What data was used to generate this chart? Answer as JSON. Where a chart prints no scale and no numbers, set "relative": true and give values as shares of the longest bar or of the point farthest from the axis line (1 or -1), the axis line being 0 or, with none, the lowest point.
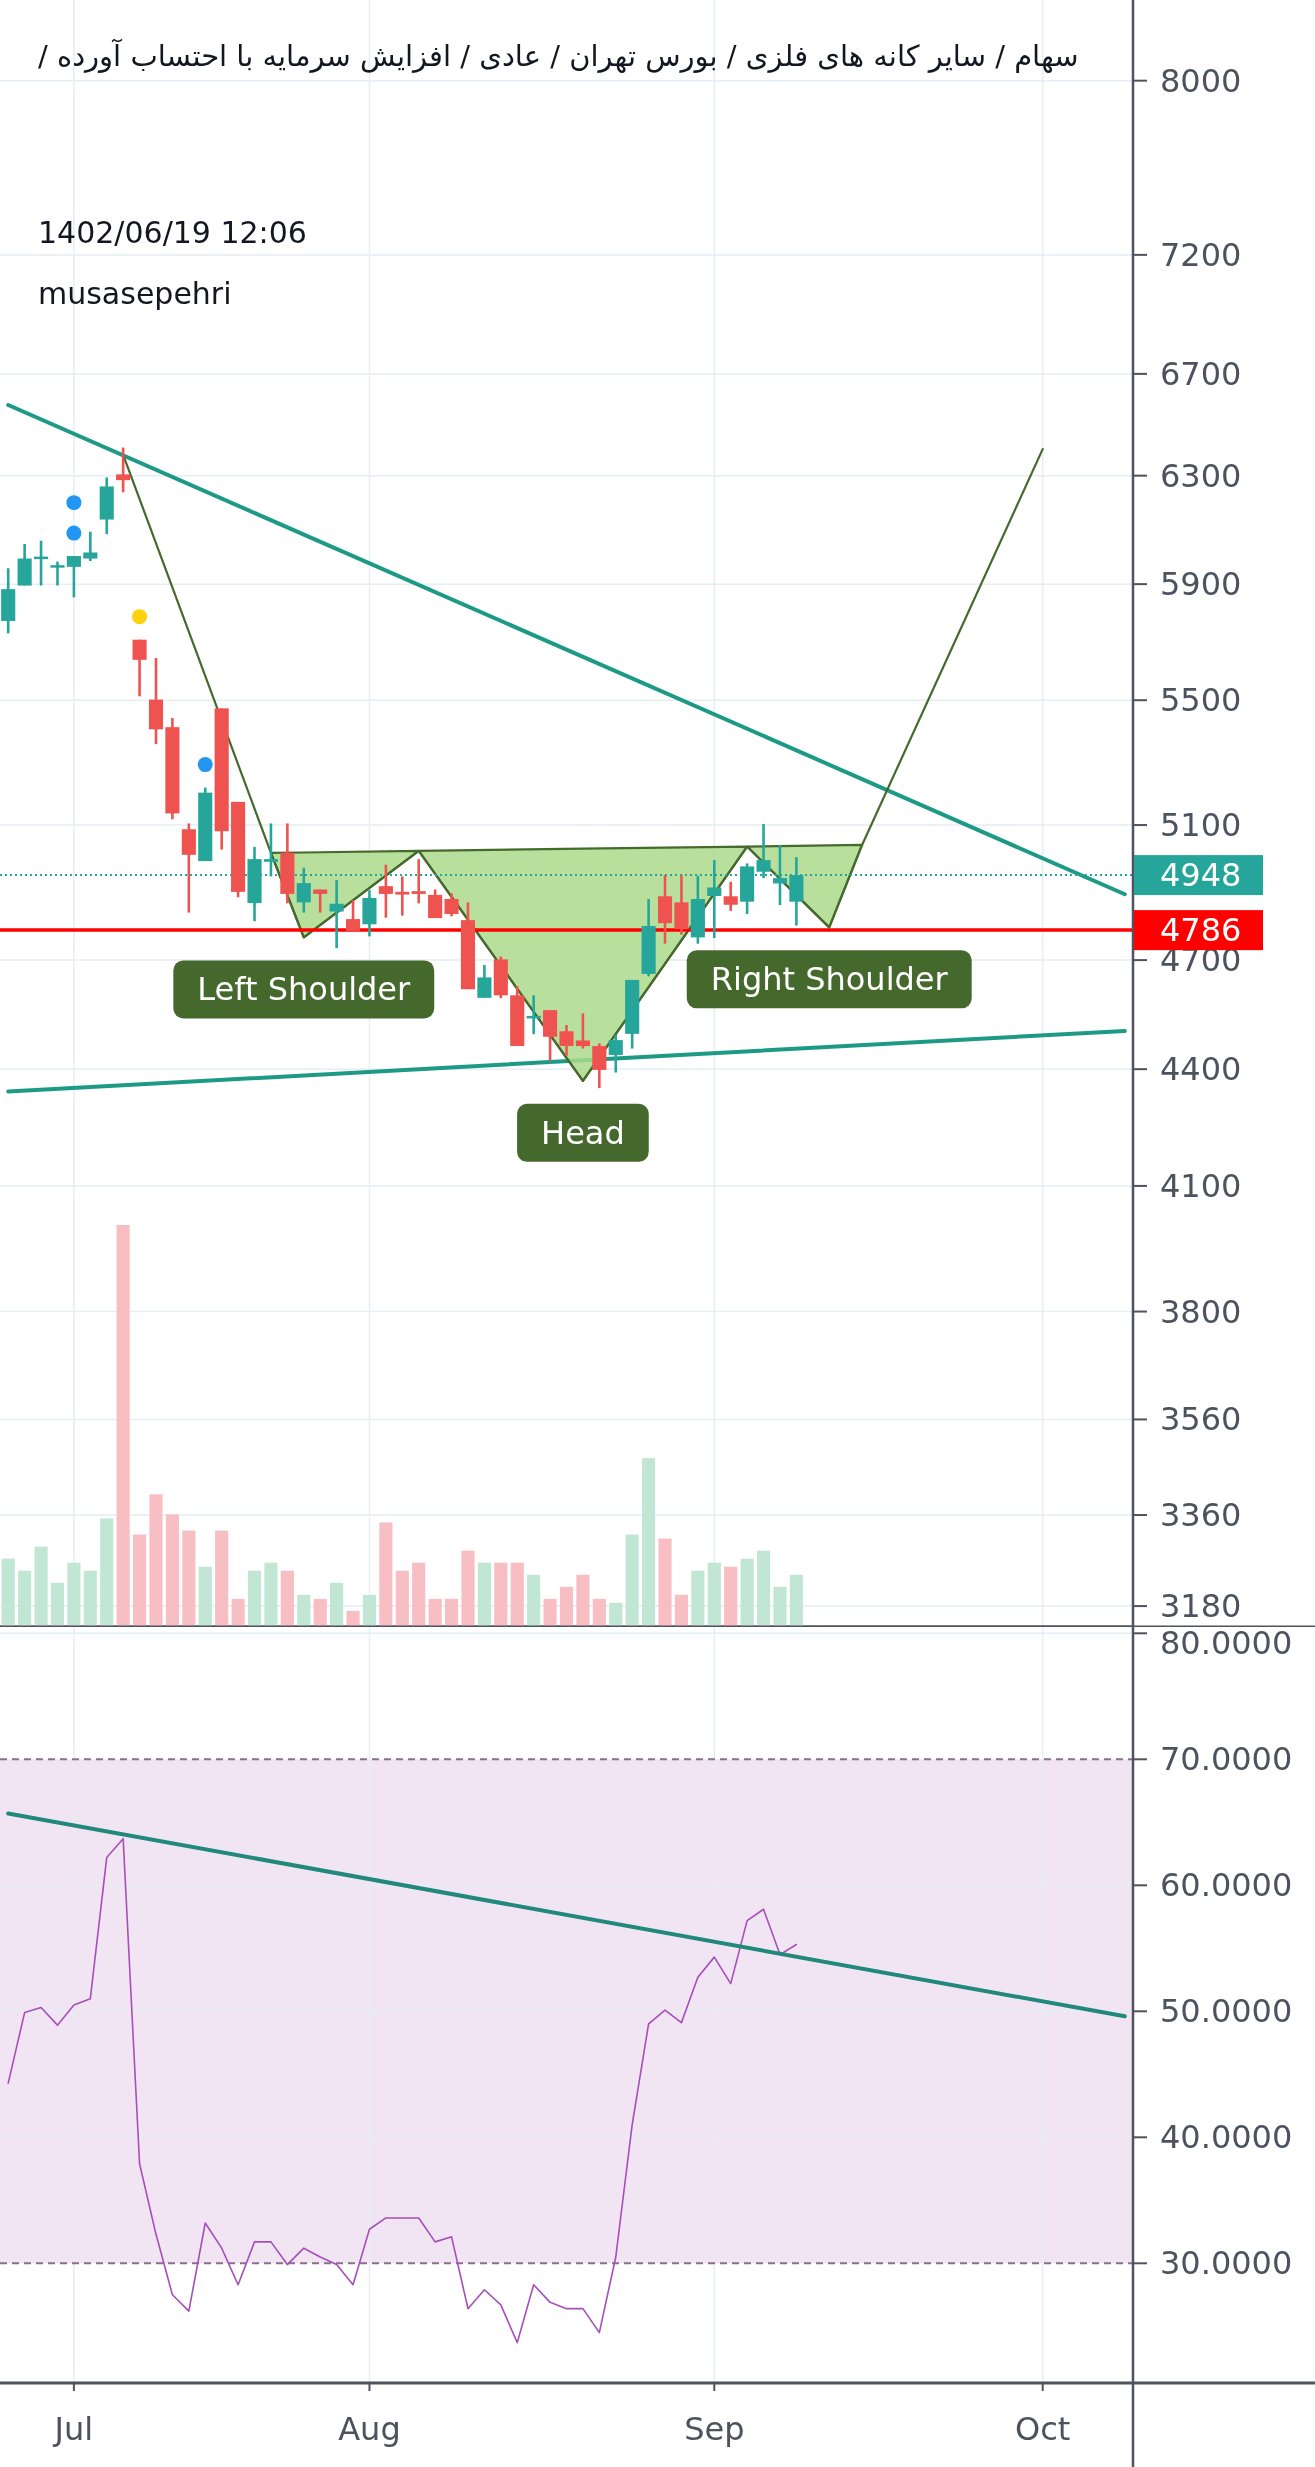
{
  "chart_data": [
    {
      "type": "candlestick",
      "title": "سهام / سایر کانه های فلزی / بورس تهران / عادی / افزایش سرمایه با احتساب آورده /",
      "annotations": [
        "1402/06/19 12:06",
        "musasepehri"
      ],
      "categories": [
        null,
        null,
        null,
        null,
        null,
        null,
        null,
        null,
        null,
        null,
        null,
        null,
        null,
        null,
        null,
        null,
        null,
        null,
        null,
        null,
        null,
        null,
        null,
        null,
        null,
        null,
        null,
        null,
        null,
        null,
        null,
        null,
        null,
        null,
        null,
        null,
        null,
        null,
        null,
        null,
        null,
        null,
        null,
        null,
        null,
        null,
        null,
        null,
        null,
        null,
        null,
        null,
        null,
        null,
        null,
        null,
        null,
        null,
        null,
        null,
        null,
        null,
        null,
        null,
        null,
        null,
        null,
        null,
        null
      ],
      "ohlc": [
        [
          5770,
          5957,
          5727,
          5882
        ],
        [
          5895,
          6045,
          5895,
          5992
        ],
        [
          5995,
          6057,
          5895,
          5999
        ],
        [
          5962,
          5981,
          5895,
          5968
        ],
        [
          5962,
          6001,
          5853,
          6001
        ],
        [
          5992,
          6090,
          5983,
          6014
        ],
        [
          6135,
          6293,
          6081,
          6259
        ],
        [
          6305,
          6408,
          6237,
          6283
        ],
        [
          5705,
          5705,
          5513,
          5636
        ],
        [
          5502,
          5642,
          5356,
          5404
        ],
        [
          5411,
          5441,
          5118,
          5136
        ],
        [
          5087,
          5105,
          4837,
          5009
        ],
        [
          4990,
          5217,
          4990,
          5201
        ],
        [
          5473,
          5473,
          5025,
          5081
        ],
        [
          5172,
          5172,
          4882,
          4898
        ],
        [
          4865,
          5033,
          4812,
          4996
        ],
        [
          4988,
          5105,
          4944,
          4996
        ],
        [
          5015,
          5105,
          4864,
          4892
        ],
        [
          4867,
          4970,
          4837,
          4924
        ],
        [
          4905,
          4905,
          4837,
          4892
        ],
        [
          4840,
          4933,
          4734,
          4863
        ],
        [
          4818,
          4873,
          4784,
          4784
        ],
        [
          4803,
          4903,
          4768,
          4880
        ],
        [
          4915,
          4979,
          4822,
          4892
        ],
        [
          4898,
          4944,
          4828,
          4890
        ],
        [
          4900,
          4996,
          4864,
          4892
        ],
        [
          4889,
          4905,
          4821,
          4821
        ],
        [
          4877,
          4894,
          4826,
          4833
        ],
        [
          4815,
          4867,
          4618,
          4618
        ],
        [
          4594,
          4686,
          4594,
          4651
        ],
        [
          4702,
          4710,
          4593,
          4601
        ],
        [
          4601,
          4626,
          4462,
          4462
        ],
        [
          4539,
          4601,
          4494,
          4544
        ],
        [
          4560,
          4560,
          4422,
          4487
        ],
        [
          4502,
          4519,
          4436,
          4462
        ],
        [
          4477,
          4551,
          4455,
          4462
        ],
        [
          4462,
          4469,
          4350,
          4398
        ],
        [
          4438,
          4492,
          4391,
          4478
        ],
        [
          4495,
          4644,
          4455,
          4644
        ],
        [
          4661,
          4877,
          4654,
          4798
        ],
        [
          4885,
          4948,
          4747,
          4806
        ],
        [
          4867,
          4948,
          4773,
          4789
        ],
        [
          4765,
          4946,
          4747,
          4877
        ],
        [
          4886,
          4993,
          4763,
          4911
        ],
        [
          4885,
          4928,
          4842,
          4860
        ],
        [
          4869,
          4983,
          4833,
          4974
        ],
        [
          4958,
          5103,
          4939,
          4993
        ],
        [
          4923,
          5039,
          4859,
          4939
        ],
        [
          4869,
          5002,
          4799,
          4948
        ],
        null,
        null,
        null,
        null,
        null,
        null,
        null,
        null,
        null,
        null,
        null,
        null,
        null,
        null,
        null,
        null,
        null,
        null,
        null,
        null
      ],
      "colors": [
        "#26a69a",
        "#26a69a",
        "#26a69a",
        "#26a69a",
        "#26a69a",
        "#26a69a",
        "#26a69a",
        "#ef5350",
        "#ef5350",
        "#ef5350",
        "#ef5350",
        "#ef5350",
        "#26a69a",
        "#ef5350",
        "#ef5350",
        "#26a69a",
        "#26a69a",
        "#ef5350",
        "#26a69a",
        "#ef5350",
        "#26a69a",
        "#ef5350",
        "#26a69a",
        "#ef5350",
        "#ef5350",
        "#ef5350",
        "#ef5350",
        "#ef5350",
        "#ef5350",
        "#26a69a",
        "#ef5350",
        "#ef5350",
        "#26a69a",
        "#ef5350",
        "#ef5350",
        "#ef5350",
        "#ef5350",
        "#26a69a",
        "#26a69a",
        "#26a69a",
        "#ef5350",
        "#ef5350",
        "#26a69a",
        "#26a69a",
        "#ef5350",
        "#26a69a",
        "#26a69a",
        "#26a69a",
        "#26a69a",
        null,
        null,
        null,
        null,
        null,
        null,
        null,
        null,
        null,
        null,
        null,
        null,
        null,
        null,
        null,
        null,
        null,
        null,
        null,
        null
      ],
      "series": [
        {
          "type": "line",
          "color": "#1d9a85",
          "values": [
            6575,
            null,
            null,
            null,
            null,
            null,
            null,
            null,
            null,
            null,
            null,
            null,
            null,
            null,
            null,
            null,
            null,
            null,
            null,
            null,
            null,
            null,
            null,
            null,
            null,
            null,
            null,
            null,
            null,
            null,
            null,
            null,
            null,
            null,
            null,
            null,
            null,
            null,
            null,
            null,
            null,
            null,
            null,
            null,
            null,
            null,
            null,
            null,
            null,
            null,
            null,
            null,
            null,
            null,
            null,
            null,
            null,
            null,
            null,
            null,
            null,
            null,
            null,
            null,
            null,
            null,
            null,
            null,
            4891
          ]
        },
        {
          "type": "line",
          "color": "#1d9a85",
          "values": [
            4341,
            null,
            null,
            null,
            null,
            null,
            null,
            null,
            null,
            null,
            null,
            null,
            null,
            null,
            null,
            null,
            null,
            null,
            null,
            null,
            null,
            null,
            null,
            null,
            null,
            null,
            null,
            null,
            null,
            null,
            null,
            null,
            null,
            null,
            null,
            null,
            null,
            null,
            null,
            null,
            null,
            null,
            null,
            null,
            null,
            null,
            null,
            null,
            null,
            null,
            null,
            null,
            null,
            null,
            null,
            null,
            null,
            null,
            null,
            null,
            null,
            null,
            null,
            null,
            null,
            null,
            null,
            null,
            4503
          ]
        },
        {
          "type": "line",
          "color": "#466a2e",
          "values": [
            null,
            null,
            null,
            null,
            null,
            null,
            null,
            6380,
            null,
            null,
            null,
            null,
            null,
            null,
            null,
            null,
            5015,
            null,
            4765,
            null,
            null,
            null,
            null,
            null,
            null,
            5021,
            null,
            null,
            null,
            null,
            null,
            null,
            null,
            null,
            null,
            4369,
            null,
            null,
            null,
            null,
            null,
            null,
            null,
            null,
            null,
            5034,
            null,
            null,
            null,
            null,
            4794,
            null,
            5039,
            null,
            null,
            null,
            null,
            null,
            null,
            null,
            null,
            null,
            null,
            6402,
            null,
            null,
            null,
            null,
            null
          ],
          "upper": [
            null,
            null,
            null,
            null,
            null,
            null,
            null,
            null,
            null,
            null,
            null,
            null,
            null,
            null,
            null,
            null,
            5015,
            null,
            5016,
            null,
            null,
            null,
            null,
            null,
            null,
            5021,
            null,
            null,
            null,
            null,
            null,
            null,
            null,
            null,
            null,
            5028,
            null,
            null,
            null,
            null,
            null,
            null,
            null,
            null,
            null,
            5034,
            null,
            null,
            null,
            null,
            5038,
            null,
            5039,
            null,
            null,
            null,
            null,
            null,
            null,
            null,
            null,
            null,
            null,
            null,
            null,
            null,
            null,
            null,
            null
          ],
          "lower": [
            null,
            null,
            null,
            null,
            null,
            null,
            null,
            null,
            null,
            null,
            null,
            null,
            null,
            null,
            null,
            null,
            5015,
            null,
            4765,
            null,
            null,
            null,
            null,
            null,
            null,
            5021,
            null,
            null,
            null,
            null,
            null,
            null,
            null,
            null,
            null,
            4369,
            null,
            null,
            null,
            null,
            null,
            null,
            null,
            null,
            null,
            5034,
            null,
            null,
            null,
            null,
            4794,
            null,
            5039,
            null,
            null,
            null,
            null,
            null,
            null,
            null,
            null,
            null,
            null,
            null,
            null,
            null,
            null,
            null,
            null
          ],
          "value_labels": [
            null,
            null,
            null,
            null,
            null,
            null,
            null,
            null,
            null,
            null,
            null,
            null,
            null,
            null,
            null,
            null,
            null,
            null,
            "Left Shoulder",
            null,
            null,
            null,
            null,
            null,
            null,
            null,
            null,
            null,
            null,
            null,
            null,
            null,
            null,
            null,
            null,
            "Head",
            null,
            null,
            null,
            null,
            null,
            null,
            null,
            null,
            null,
            null,
            null,
            null,
            null,
            null,
            "Right Shoulder",
            null,
            null,
            null,
            null,
            null,
            null,
            null,
            null,
            null,
            null,
            null,
            null,
            null,
            null,
            null,
            null,
            null,
            null
          ]
        },
        {
          "type": "scatter",
          "color": "#2196f3",
          "marker": "circle",
          "values": [
            null,
            null,
            null,
            null,
            6198,
            null,
            null,
            null,
            null,
            null,
            null,
            null,
            5290,
            null,
            null,
            null,
            null,
            null,
            null,
            null,
            null,
            null,
            null,
            null,
            null,
            null,
            null,
            null,
            null,
            null,
            null,
            null,
            null,
            null,
            null,
            null,
            null,
            null,
            null,
            null,
            null,
            null,
            null,
            null,
            null,
            null,
            null,
            null,
            null,
            null,
            null,
            null,
            null,
            null,
            null,
            null,
            null,
            null,
            null,
            null,
            null,
            null,
            null,
            null,
            null,
            null,
            null,
            null,
            null
          ]
        },
        {
          "type": "scatter",
          "color": "#2196f3",
          "marker": "circle",
          "values": [
            null,
            null,
            null,
            null,
            6085,
            null,
            null,
            null,
            null,
            null,
            null,
            null,
            null,
            null,
            null,
            null,
            null,
            null,
            null,
            null,
            null,
            null,
            null,
            null,
            null,
            null,
            null,
            null,
            null,
            null,
            null,
            null,
            null,
            null,
            null,
            null,
            null,
            null,
            null,
            null,
            null,
            null,
            null,
            null,
            null,
            null,
            null,
            null,
            null,
            null,
            null,
            null,
            null,
            null,
            null,
            null,
            null,
            null,
            null,
            null,
            null,
            null,
            null,
            null,
            null,
            null,
            null,
            null,
            null
          ]
        },
        {
          "type": "scatter",
          "color": "#fcd20c",
          "marker": "circle",
          "values": [
            null,
            null,
            null,
            null,
            null,
            null,
            null,
            null,
            5785,
            null,
            null,
            null,
            null,
            null,
            null,
            null,
            null,
            null,
            null,
            null,
            null,
            null,
            null,
            null,
            null,
            null,
            null,
            null,
            null,
            null,
            null,
            null,
            null,
            null,
            null,
            null,
            null,
            null,
            null,
            null,
            null,
            null,
            null,
            null,
            null,
            null,
            null,
            null,
            null,
            null,
            null,
            null,
            null,
            null,
            null,
            null,
            null,
            null,
            null,
            null,
            null,
            null,
            null,
            null,
            null,
            null,
            null,
            null,
            null
          ]
        }
      ],
      "ylim": [
        3140,
        8400
      ],
      "yticks": [
        3180,
        3360,
        3560,
        3800,
        4100,
        4400,
        4700,
        5100,
        5500,
        5900,
        6300,
        6700,
        7200,
        8000
      ],
      "log": true,
      "grid": true,
      "tick_labels": "y",
      "ref_lines": [
        {
          "axis": "y",
          "value": 4948,
          "label": "4948",
          "color": "#26a69a",
          "line_style": "dotted"
        },
        {
          "axis": "y",
          "value": 4786,
          "label": "4786",
          "color": "#ff0000"
        }
      ]
    },
    {
      "type": "bar",
      "relative": true,
      "tick_labels": false,
      "categories": [
        null,
        null,
        null,
        null,
        null,
        null,
        null,
        null,
        null,
        null,
        null,
        null,
        null,
        null,
        null,
        null,
        null,
        null,
        null,
        null,
        null,
        null,
        null,
        null,
        null,
        null,
        null,
        null,
        null,
        null,
        null,
        null,
        null,
        null,
        null,
        null,
        null,
        null,
        null,
        null,
        null,
        null,
        null,
        null,
        null,
        null,
        null,
        null,
        null,
        null,
        null,
        null,
        null,
        null,
        null,
        null,
        null,
        null,
        null,
        null,
        null,
        null,
        null,
        null,
        null,
        null,
        null,
        null,
        null
      ],
      "values": [
        0.17,
        0.14,
        0.2,
        0.11,
        0.16,
        0.14,
        0.27,
        1,
        0.23,
        0.33,
        0.28,
        0.24,
        0.15,
        0.24,
        0.07,
        0.14,
        0.16,
        0.14,
        0.08,
        0.07,
        0.11,
        0.04,
        0.08,
        0.26,
        0.14,
        0.16,
        0.07,
        0.07,
        0.19,
        0.16,
        0.16,
        0.16,
        0.13,
        0.07,
        0.1,
        0.13,
        0.07,
        0.06,
        0.23,
        0.42,
        0.22,
        0.08,
        0.14,
        0.16,
        0.15,
        0.17,
        0.19,
        0.1,
        0.13,
        null,
        null,
        null,
        null,
        null,
        null,
        null,
        null,
        null,
        null,
        null,
        null,
        null,
        null,
        null,
        null,
        null,
        null,
        null,
        null
      ],
      "colors": [
        "#c2e6d4",
        "#c2e6d4",
        "#c2e6d4",
        "#c2e6d4",
        "#c2e6d4",
        "#c2e6d4",
        "#c2e6d4",
        "#f7bfc3",
        "#f7bfc3",
        "#f7bfc3",
        "#f7bfc3",
        "#f7bfc3",
        "#c2e6d4",
        "#f7bfc3",
        "#f7bfc3",
        "#c2e6d4",
        "#c2e6d4",
        "#f7bfc3",
        "#c2e6d4",
        "#f7bfc3",
        "#c2e6d4",
        "#f7bfc3",
        "#c2e6d4",
        "#f7bfc3",
        "#f7bfc3",
        "#f7bfc3",
        "#f7bfc3",
        "#f7bfc3",
        "#f7bfc3",
        "#c2e6d4",
        "#f7bfc3",
        "#f7bfc3",
        "#c2e6d4",
        "#f7bfc3",
        "#f7bfc3",
        "#f7bfc3",
        "#f7bfc3",
        "#c2e6d4",
        "#c2e6d4",
        "#c2e6d4",
        "#f7bfc3",
        "#f7bfc3",
        "#c2e6d4",
        "#c2e6d4",
        "#f7bfc3",
        "#c2e6d4",
        "#c2e6d4",
        "#c2e6d4",
        "#c2e6d4",
        null,
        null,
        null,
        null,
        null,
        null,
        null,
        null,
        null,
        null,
        null,
        null,
        null,
        null,
        null,
        null,
        null,
        null,
        null,
        null
      ]
    },
    {
      "type": "line",
      "categories": [
        null,
        null,
        null,
        null,
        "Jul",
        null,
        null,
        null,
        null,
        null,
        null,
        null,
        null,
        null,
        null,
        null,
        null,
        null,
        null,
        null,
        null,
        null,
        "Aug",
        null,
        null,
        null,
        null,
        null,
        null,
        null,
        null,
        null,
        null,
        null,
        null,
        null,
        null,
        null,
        null,
        null,
        null,
        null,
        null,
        "Sep",
        null,
        null,
        null,
        null,
        null,
        null,
        null,
        null,
        null,
        null,
        null,
        null,
        null,
        null,
        null,
        null,
        null,
        null,
        null,
        "Oct",
        null,
        null,
        null,
        null,
        null
      ],
      "series": [
        {
          "color": "#a64fb8",
          "values": [
            44.3,
            49.9,
            50.3,
            48.9,
            50.5,
            51.0,
            62.2,
            63.7,
            37.9,
            32.3,
            27.5,
            26.2,
            33.2,
            31.2,
            28.3,
            31.7,
            31.7,
            29.9,
            31.2,
            30.5,
            29.9,
            28.3,
            32.7,
            33.6,
            33.6,
            33.6,
            31.7,
            32.1,
            26.4,
            27.9,
            26.7,
            23.7,
            28.3,
            26.9,
            26.4,
            26.4,
            24.5,
            30.5,
            41.0,
            49.0,
            50.1,
            49.1,
            52.7,
            54.3,
            52.2,
            57.2,
            58.1,
            54.5,
            55.3,
            null,
            null,
            null,
            null,
            null,
            null,
            null,
            null,
            null,
            null,
            null,
            null,
            null,
            null,
            null,
            null,
            null,
            null,
            null,
            null
          ]
        },
        {
          "type": "line",
          "color": "#20897b",
          "values": [
            65.7,
            null,
            null,
            null,
            null,
            null,
            null,
            null,
            null,
            null,
            null,
            null,
            null,
            null,
            null,
            null,
            null,
            null,
            null,
            null,
            null,
            null,
            null,
            null,
            null,
            null,
            null,
            null,
            null,
            null,
            null,
            null,
            null,
            null,
            null,
            null,
            null,
            null,
            null,
            null,
            null,
            null,
            null,
            null,
            null,
            null,
            null,
            null,
            null,
            null,
            null,
            null,
            null,
            null,
            null,
            null,
            null,
            null,
            null,
            null,
            null,
            null,
            null,
            null,
            null,
            null,
            null,
            null,
            49.6
          ]
        }
      ],
      "ylim": [
        20.5,
        80.5
      ],
      "yticks": [
        {
          "value": 30,
          "label": "30.0000"
        },
        {
          "value": 40,
          "label": "40.0000"
        },
        {
          "value": 50,
          "label": "50.0000"
        },
        {
          "value": 60,
          "label": "60.0000"
        },
        {
          "value": 70,
          "label": "70.0000"
        },
        {
          "value": 80,
          "label": "80.0000"
        }
      ],
      "grid": true,
      "bands": [
        {
          "axis": "y",
          "from": 30,
          "to": 70,
          "color": "#f1e5f3"
        }
      ]
    }
  ]
}
